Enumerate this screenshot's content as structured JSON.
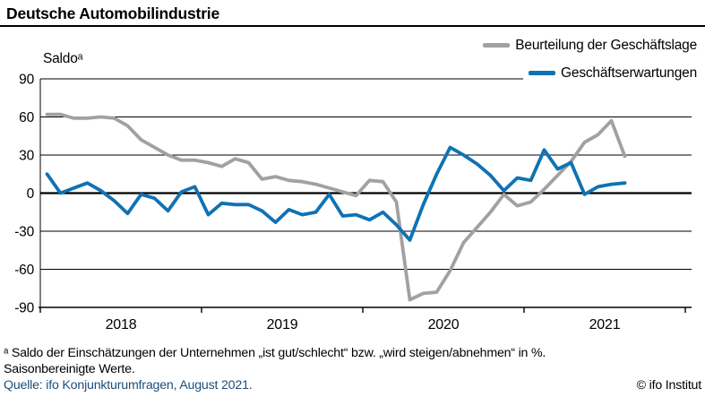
{
  "title": "Deutsche Automobilindustrie",
  "y_axis_label": "Saldoᵃ",
  "legend": [
    {
      "label": "Beurteilung der Geschäftslage",
      "color": "#a1a1a1"
    },
    {
      "label": "Geschäftserwartungen",
      "color": "#0f72b4"
    }
  ],
  "footnotes": {
    "definition": "ᵃ Saldo der Einschätzungen der Unternehmen „ist gut/schlecht“ bzw. „wird steigen/abnehmen“ in %.",
    "seasonal": "Saisonbereinigte Werte.",
    "source": "Quelle: ifo Konjunkturumfragen, August 2021.",
    "copyright": "© ifo Institut"
  },
  "chart_data": {
    "type": "line",
    "title": "Deutsche Automobilindustrie",
    "ylabel": "Saldo",
    "ylim": [
      -90,
      90
    ],
    "yticks": [
      90,
      60,
      30,
      0,
      -30,
      -60,
      -90
    ],
    "x_tick_years": [
      "2018",
      "2019",
      "2020",
      "2021"
    ],
    "grid": true,
    "legend_position": "top-right",
    "x": [
      "2018-01",
      "2018-02",
      "2018-03",
      "2018-04",
      "2018-05",
      "2018-06",
      "2018-07",
      "2018-08",
      "2018-09",
      "2018-10",
      "2018-11",
      "2018-12",
      "2019-01",
      "2019-02",
      "2019-03",
      "2019-04",
      "2019-05",
      "2019-06",
      "2019-07",
      "2019-08",
      "2019-09",
      "2019-10",
      "2019-11",
      "2019-12",
      "2020-01",
      "2020-02",
      "2020-03",
      "2020-04",
      "2020-05",
      "2020-06",
      "2020-07",
      "2020-08",
      "2020-09",
      "2020-10",
      "2020-11",
      "2020-12",
      "2021-01",
      "2021-02",
      "2021-03",
      "2021-04",
      "2021-05",
      "2021-06",
      "2021-07",
      "2021-08"
    ],
    "series": [
      {
        "name": "Beurteilung der Geschäftslage",
        "color": "#a1a1a1",
        "values": [
          62,
          62,
          59,
          59,
          60,
          59,
          53,
          42,
          36,
          30,
          26,
          26,
          24,
          21,
          27,
          24,
          11,
          13,
          10,
          9,
          7,
          4,
          1,
          -2,
          10,
          9,
          -7,
          -84,
          -79,
          -78,
          -61,
          -39,
          -27,
          -15,
          -1,
          -10,
          -7,
          3,
          14,
          25,
          40,
          46,
          57,
          29
        ]
      },
      {
        "name": "Geschäftserwartungen",
        "color": "#0f72b4",
        "values": [
          15,
          0,
          4,
          8,
          2,
          -6,
          -16,
          -1,
          -4,
          -14,
          1,
          5,
          -17,
          -8,
          -9,
          -9,
          -14,
          -23,
          -13,
          -17,
          -15,
          -1,
          -18,
          -17,
          -21,
          -15,
          -25,
          -37,
          -9,
          15,
          36,
          30,
          23,
          14,
          2,
          12,
          10,
          34,
          19,
          24,
          -1,
          5,
          7,
          8
        ]
      }
    ]
  }
}
